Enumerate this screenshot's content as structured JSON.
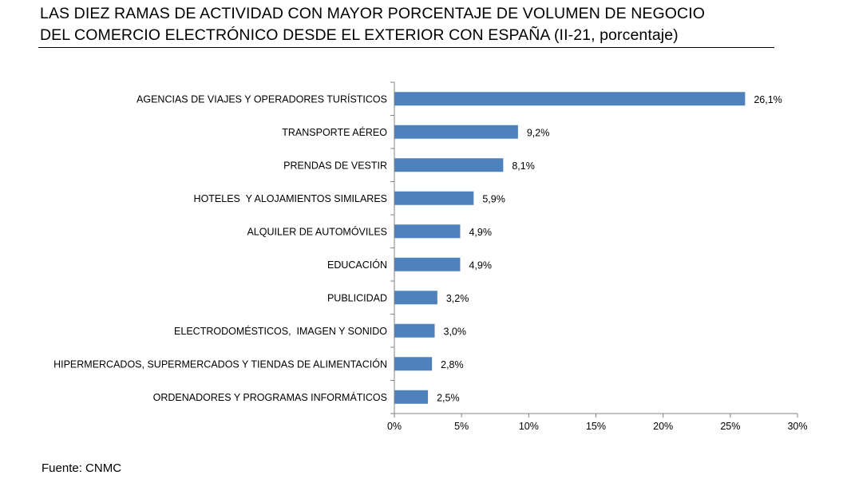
{
  "header": {
    "title_line1": "LAS DIEZ RAMAS DE ACTIVIDAD CON MAYOR PORCENTAJE DE VOLUMEN DE NEGOCIO",
    "title_line2": "DEL COMERCIO ELECTRÓNICO DESDE EL EXTERIOR CON ESPAÑA (II-21, porcentaje)"
  },
  "footer": {
    "source": "Fuente: CNMC"
  },
  "chart_data": {
    "type": "bar",
    "orientation": "horizontal",
    "title": "LAS DIEZ RAMAS DE ACTIVIDAD CON MAYOR PORCENTAJE DE VOLUMEN DE NEGOCIO DEL COMERCIO ELECTRÓNICO DESDE EL EXTERIOR CON ESPAÑA (II-21, porcentaje)",
    "xlabel": "",
    "ylabel": "",
    "xlim": [
      0,
      30
    ],
    "x_ticks": [
      0,
      5,
      10,
      15,
      20,
      25,
      30
    ],
    "x_tick_labels": [
      "0%",
      "5%",
      "10%",
      "15%",
      "20%",
      "25%",
      "30%"
    ],
    "grid": false,
    "legend": "none",
    "bar_color": "#4F81BD",
    "categories": [
      "AGENCIAS DE VIAJES Y OPERADORES TURÍSTICOS",
      "TRANSPORTE AÉREO",
      "PRENDAS DE VESTIR",
      "HOTELES  Y ALOJAMIENTOS SIMILARES",
      "ALQUILER DE AUTOMÓVILES",
      "EDUCACIÓN",
      "PUBLICIDAD",
      "ELECTRODOMÉSTICOS,  IMAGEN Y SONIDO",
      "HIPERMERCADOS, SUPERMERCADOS Y TIENDAS DE ALIMENTACIÓN",
      "ORDENADORES Y PROGRAMAS INFORMÁTICOS"
    ],
    "values": [
      26.1,
      9.2,
      8.1,
      5.9,
      4.9,
      4.9,
      3.2,
      3.0,
      2.8,
      2.5
    ],
    "value_labels": [
      "26,1%",
      "9,2%",
      "8,1%",
      "5,9%",
      "4,9%",
      "4,9%",
      "3,2%",
      "3,0%",
      "2,8%",
      "2,5%"
    ]
  }
}
